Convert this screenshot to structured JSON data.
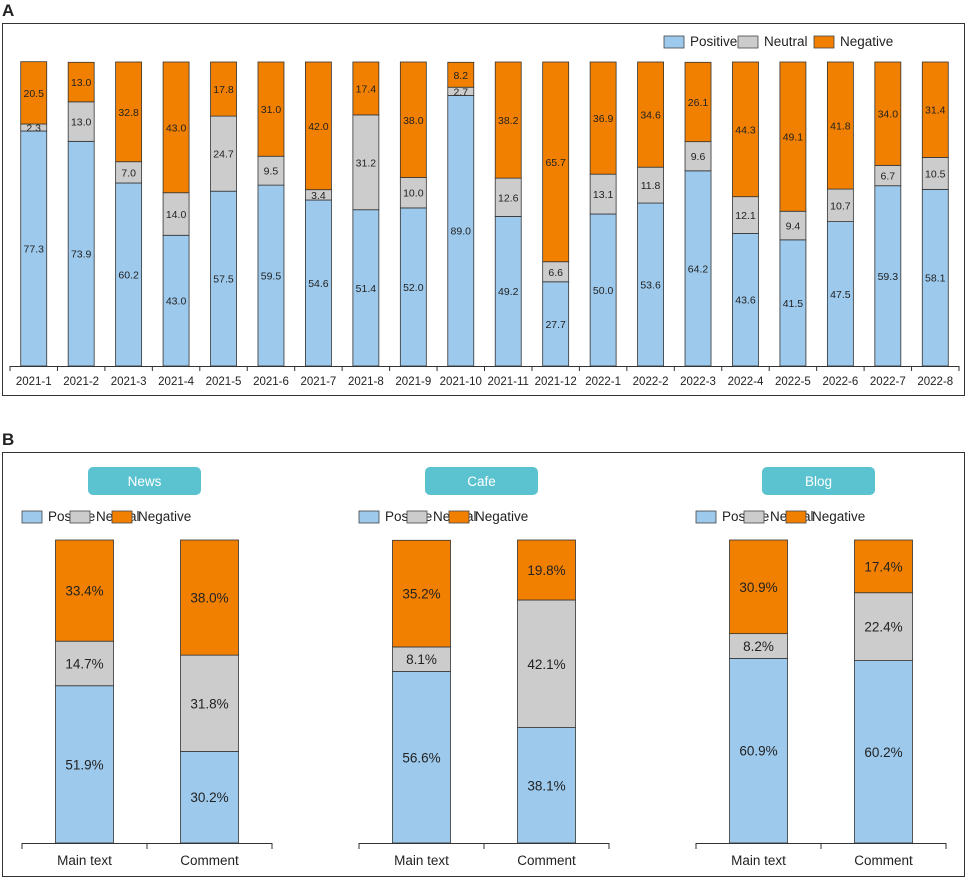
{
  "colors": {
    "positive": "#9dc9ec",
    "neutral": "#cccccc",
    "negative": "#f28000",
    "pill": "#5bc3cf",
    "frame": "#333333"
  },
  "chart_data": [
    {
      "type": "bar",
      "stacked": true,
      "panel_label": "A",
      "title": "",
      "xlabel": "",
      "ylabel": "",
      "ylim": [
        0,
        100
      ],
      "legend_position": "top-right",
      "legend": [
        "Positive",
        "Neutral",
        "Negative"
      ],
      "categories": [
        "2021-1",
        "2021-2",
        "2021-3",
        "2021-4",
        "2021-5",
        "2021-6",
        "2021-7",
        "2021-8",
        "2021-9",
        "2021-10",
        "2021-11",
        "2021-12",
        "2022-1",
        "2022-2",
        "2022-3",
        "2022-4",
        "2022-5",
        "2022-6",
        "2022-7",
        "2022-8"
      ],
      "series": [
        {
          "name": "Positive",
          "values": [
            77.3,
            73.9,
            60.2,
            43.0,
            57.5,
            59.5,
            54.6,
            51.4,
            52.0,
            89.0,
            49.2,
            27.7,
            50.0,
            53.6,
            64.2,
            43.6,
            41.5,
            47.5,
            59.3,
            58.1
          ],
          "labels": [
            "77.3",
            "73.9",
            "60.2",
            "43.0",
            "57.5",
            "59.5",
            "54.6",
            "51.4",
            "52.0",
            "89.0",
            "49.2",
            "27.7",
            "50.0",
            "53.6",
            "64.2",
            "43.6",
            "41.5",
            "47.5",
            "59.3",
            "58.1"
          ]
        },
        {
          "name": "Neutral",
          "values": [
            2.3,
            13.0,
            7.0,
            14.0,
            24.7,
            9.5,
            3.4,
            31.2,
            10.0,
            2.7,
            12.6,
            6.6,
            13.1,
            11.8,
            9.6,
            12.1,
            9.4,
            10.7,
            6.7,
            10.5
          ],
          "labels": [
            "2.3",
            "13.0",
            "7.0",
            "14.0",
            "24.7",
            "9.5",
            "3.4",
            "31.2",
            "10.0",
            "2.7",
            "12.6",
            "6.6",
            "13.1",
            "11.8",
            "9.6",
            "12.1",
            "9.4",
            "10.7",
            "6.7",
            "10.5"
          ]
        },
        {
          "name": "Negative",
          "values": [
            20.5,
            13.0,
            32.8,
            43.0,
            17.8,
            31.0,
            42.0,
            17.4,
            38.0,
            8.2,
            38.2,
            65.7,
            36.9,
            34.6,
            26.1,
            44.3,
            49.1,
            41.8,
            34.0,
            31.4
          ],
          "labels": [
            "20.5",
            "13.0",
            "32.8",
            "43.0",
            "17.8",
            "31.0",
            "42.0",
            "17.4",
            "38.0",
            "8.2",
            "38.2",
            "65.7",
            "36.9",
            "34.6",
            "26.1",
            "44.3",
            "49.1",
            "41.8",
            "34.0",
            "31.4"
          ]
        }
      ]
    },
    {
      "type": "bar",
      "stacked": true,
      "panel_label": "B",
      "title": "News",
      "xlabel": "",
      "ylabel": "",
      "ylim": [
        0,
        100
      ],
      "legend_position": "top",
      "legend": [
        "Positive",
        "Neutral",
        "Negative"
      ],
      "categories": [
        "Main text",
        "Comment"
      ],
      "series": [
        {
          "name": "Positive",
          "values": [
            51.9,
            30.2
          ],
          "labels": [
            "51.9%",
            "30.2%"
          ]
        },
        {
          "name": "Neutral",
          "values": [
            14.7,
            31.8
          ],
          "labels": [
            "14.7%",
            "31.8%"
          ]
        },
        {
          "name": "Negative",
          "values": [
            33.4,
            38.0
          ],
          "labels": [
            "33.4%",
            "38.0%"
          ]
        }
      ]
    },
    {
      "type": "bar",
      "stacked": true,
      "panel_label": "B",
      "title": "Cafe",
      "xlabel": "",
      "ylabel": "",
      "ylim": [
        0,
        100
      ],
      "legend_position": "top",
      "legend": [
        "Positive",
        "Neutral",
        "Negative"
      ],
      "categories": [
        "Main text",
        "Comment"
      ],
      "series": [
        {
          "name": "Positive",
          "values": [
            56.6,
            38.1
          ],
          "labels": [
            "56.6%",
            "38.1%"
          ]
        },
        {
          "name": "Neutral",
          "values": [
            8.1,
            42.1
          ],
          "labels": [
            "8.1%",
            "42.1%"
          ]
        },
        {
          "name": "Negative",
          "values": [
            35.2,
            19.8
          ],
          "labels": [
            "35.2%",
            "19.8%"
          ]
        }
      ]
    },
    {
      "type": "bar",
      "stacked": true,
      "panel_label": "B",
      "title": "Blog",
      "xlabel": "",
      "ylabel": "",
      "ylim": [
        0,
        100
      ],
      "legend_position": "top",
      "legend": [
        "Positive",
        "Neutral",
        "Negative"
      ],
      "categories": [
        "Main text",
        "Comment"
      ],
      "series": [
        {
          "name": "Positive",
          "values": [
            60.9,
            60.2
          ],
          "labels": [
            "60.9%",
            "60.2%"
          ]
        },
        {
          "name": "Neutral",
          "values": [
            8.2,
            22.4
          ],
          "labels": [
            "8.2%",
            "22.4%"
          ]
        },
        {
          "name": "Negative",
          "values": [
            30.9,
            17.4
          ],
          "labels": [
            "30.9%",
            "17.4%"
          ]
        }
      ]
    }
  ]
}
